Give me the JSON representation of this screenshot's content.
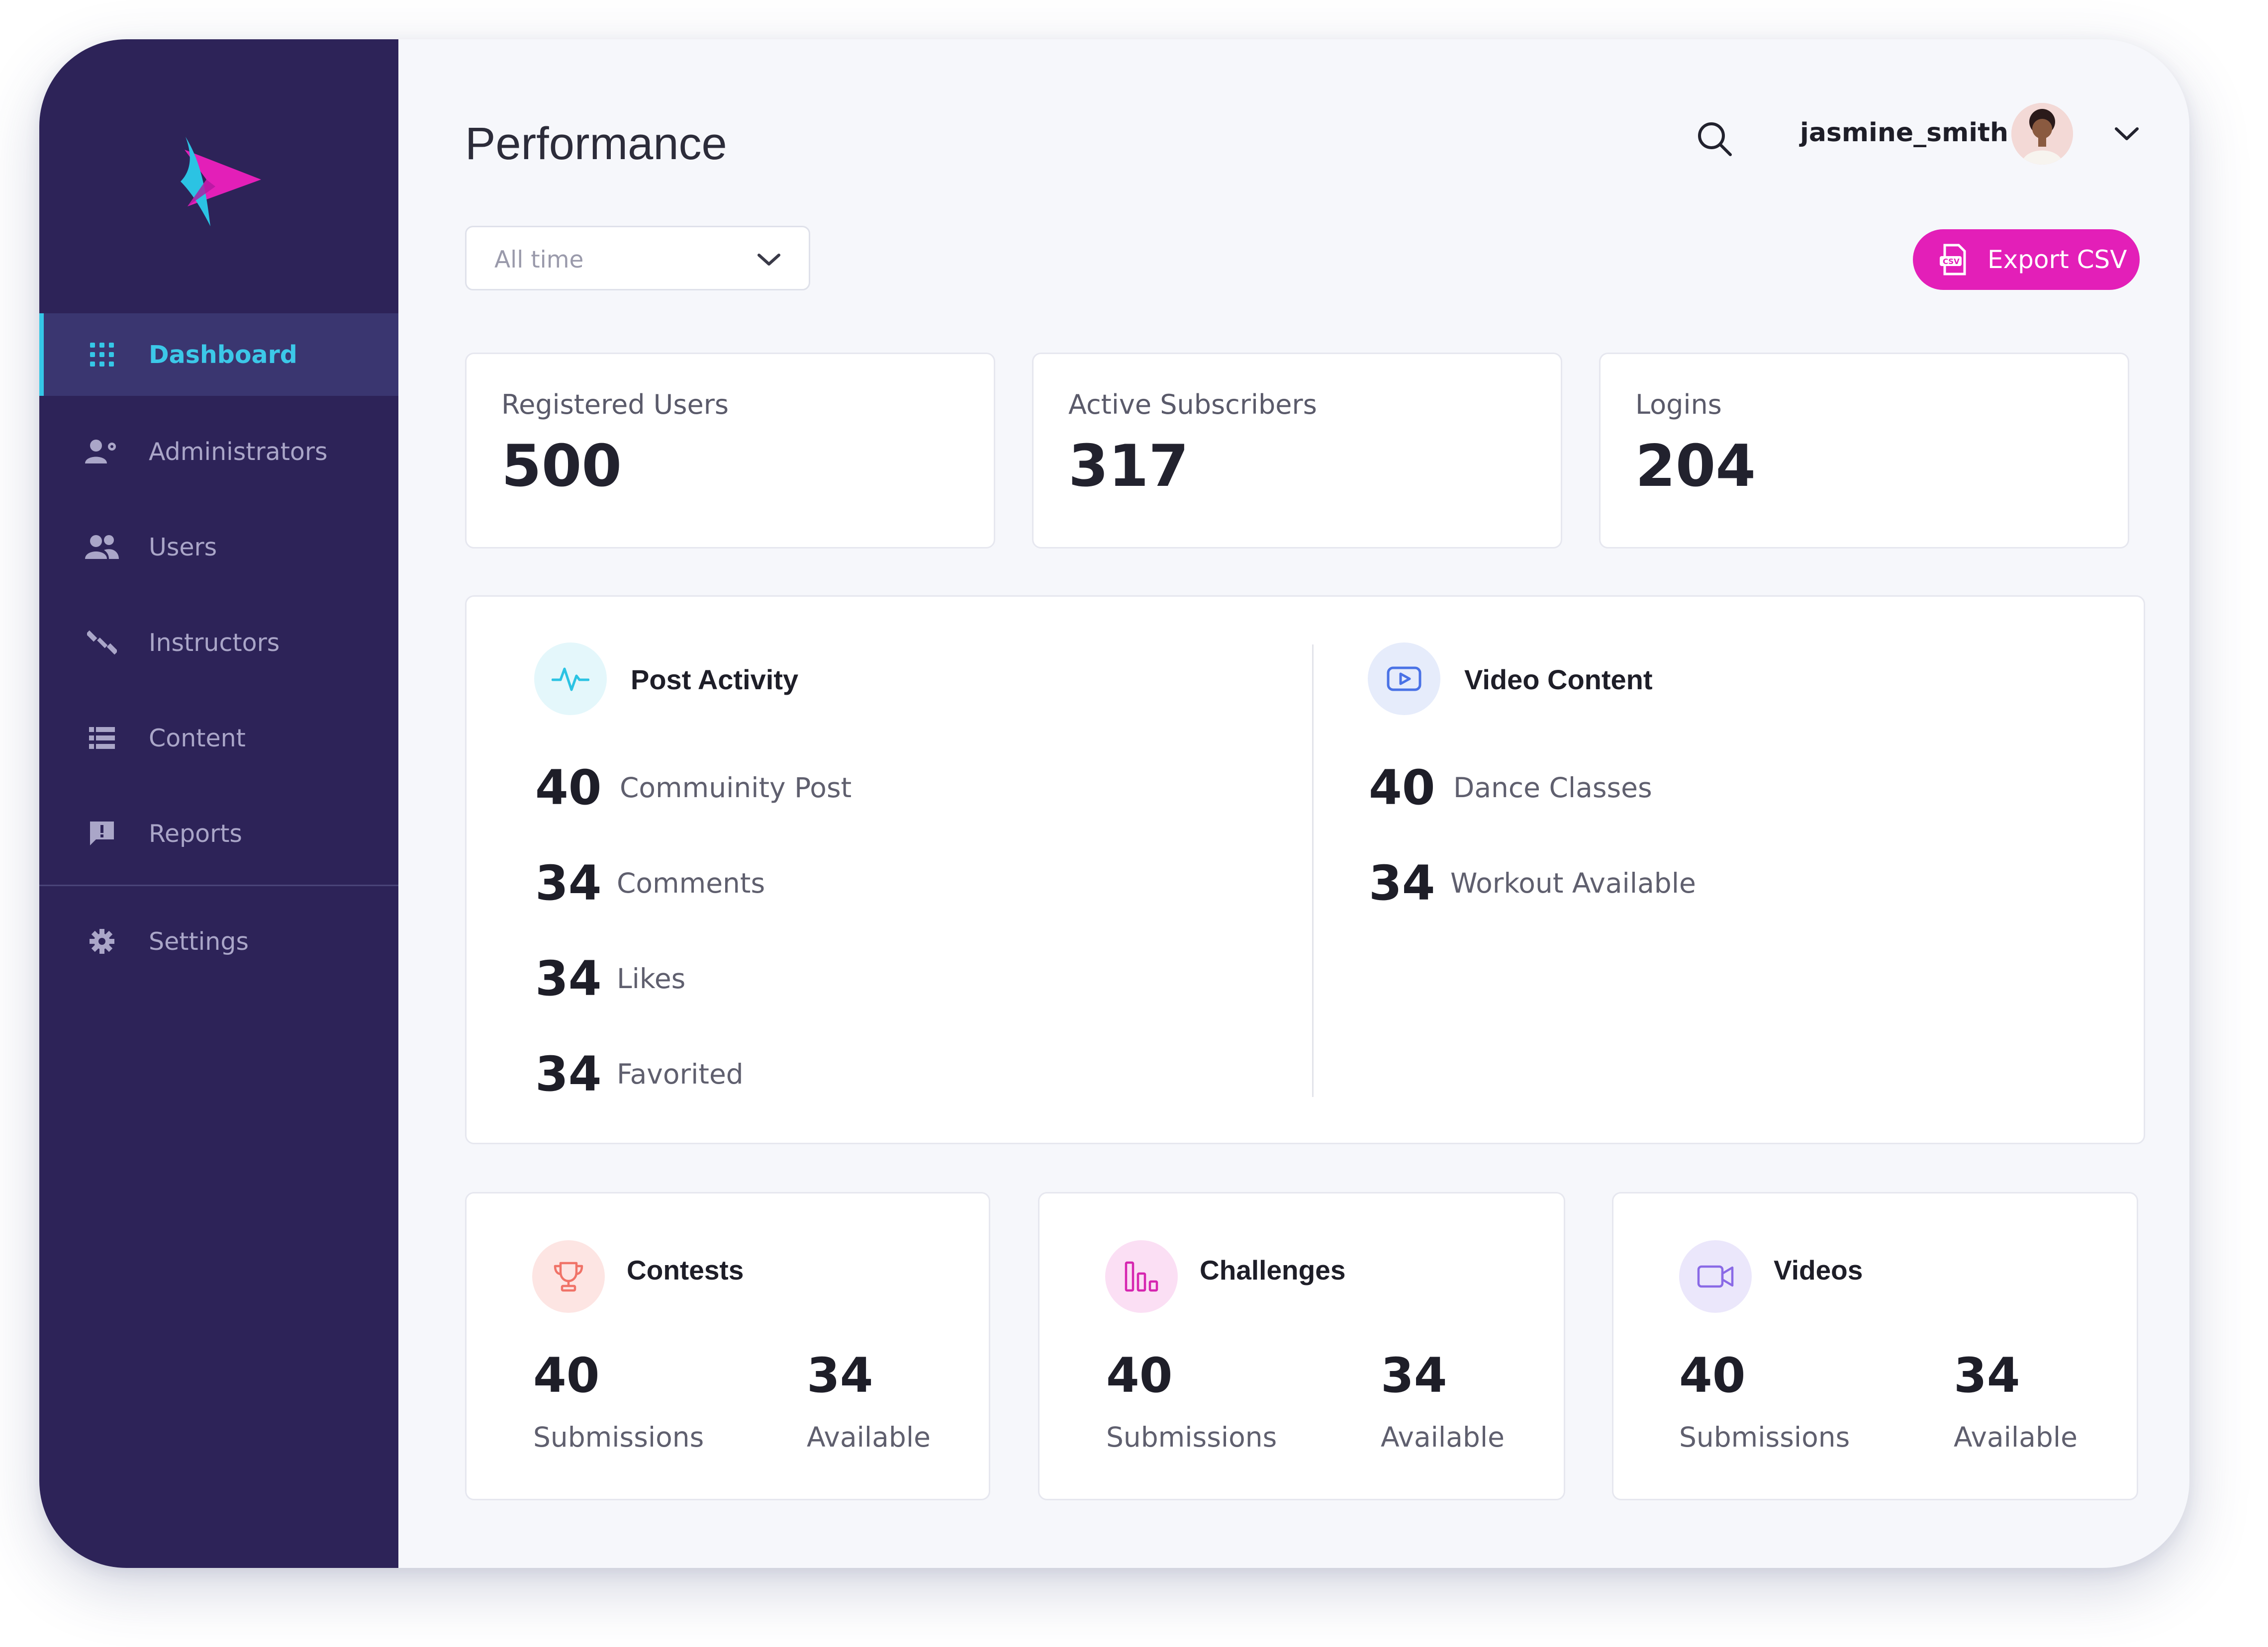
{
  "sidebar": {
    "items": [
      {
        "label": "Dashboard",
        "icon": "grid-icon",
        "active": true
      },
      {
        "label": "Administrators",
        "icon": "user-gear-icon"
      },
      {
        "label": "Users",
        "icon": "users-icon"
      },
      {
        "label": "Instructors",
        "icon": "dumbbell-icon"
      },
      {
        "label": "Content",
        "icon": "list-icon"
      },
      {
        "label": "Reports",
        "icon": "report-icon"
      }
    ],
    "settings": {
      "label": "Settings",
      "icon": "gear-icon"
    }
  },
  "header": {
    "title": "Performance",
    "username": "jasmine_smith"
  },
  "filter": {
    "selected": "All time"
  },
  "export": {
    "label": "Export CSV",
    "icon": "csv-file-icon"
  },
  "stats": [
    {
      "label": "Registered Users",
      "value": "500"
    },
    {
      "label": "Active Subscribers",
      "value": "317"
    },
    {
      "label": "Logins",
      "value": "204"
    }
  ],
  "post_activity": {
    "title": "Post Activity",
    "rows": [
      {
        "value": "40",
        "label": "Commuinity Post"
      },
      {
        "value": "34",
        "label": "Comments"
      },
      {
        "value": "34",
        "label": "Likes"
      },
      {
        "value": "34",
        "label": "Favorited"
      }
    ]
  },
  "video_content": {
    "title": "Video Content",
    "rows": [
      {
        "value": "40",
        "label": "Dance Classes"
      },
      {
        "value": "34",
        "label": "Workout Available"
      }
    ]
  },
  "summary_cards": [
    {
      "title": "Contests",
      "icon": "trophy-icon",
      "left_value": "40",
      "left_label": "Submissions",
      "right_value": "34",
      "right_label": "Available"
    },
    {
      "title": "Challenges",
      "icon": "bar-chart-icon",
      "left_value": "40",
      "left_label": "Submissions",
      "right_value": "34",
      "right_label": "Available"
    },
    {
      "title": "Videos",
      "icon": "video-camera-icon",
      "left_value": "40",
      "left_label": "Submissions",
      "right_value": "34",
      "right_label": "Available"
    }
  ],
  "colors": {
    "sidebar_bg": "#2d2358",
    "active_accent": "#35c7e6",
    "brand_pink": "#e31fb8",
    "page_bg": "#f6f7fb"
  }
}
